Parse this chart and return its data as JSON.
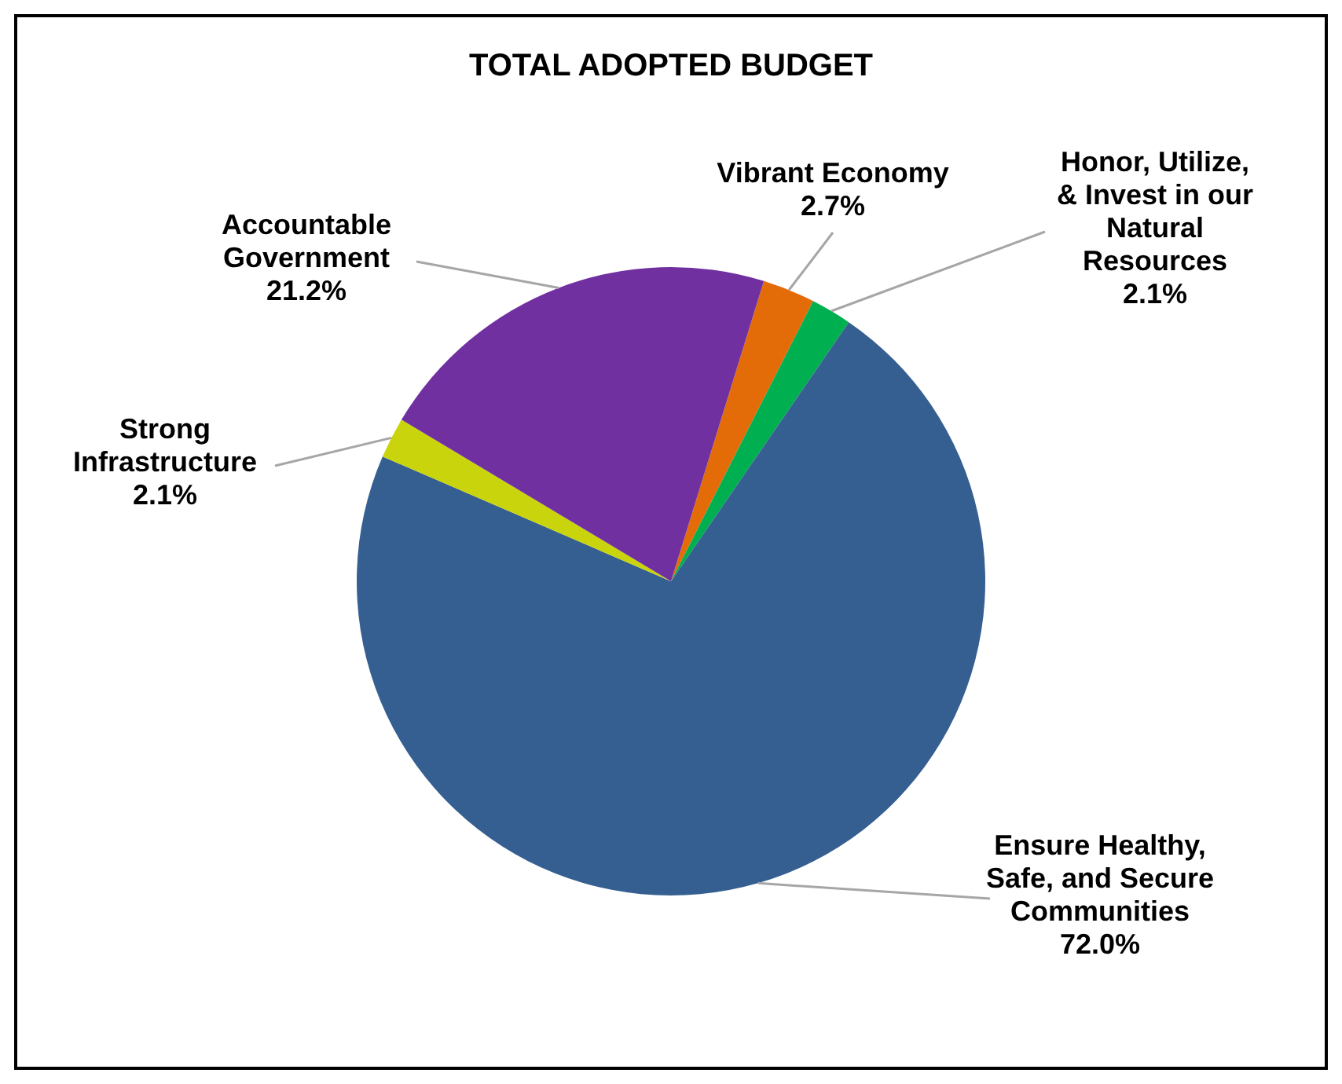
{
  "chart_data": {
    "type": "pie",
    "title": "TOTAL ADOPTED BUDGET",
    "categories": [
      "Vibrant Economy",
      "Honor, Utilize, & Invest in our Natural Resources",
      "Ensure Healthy, Safe, and Secure Communities",
      "Strong Infrastructure",
      "Accountable Government"
    ],
    "values": [
      2.7,
      2.1,
      72.0,
      2.1,
      21.2
    ],
    "value_labels": [
      "2.7%",
      "2.1%",
      "72.0%",
      "2.1%",
      "21.2%"
    ],
    "colors": [
      "#e36c09",
      "#00b050",
      "#365f91",
      "#c9d40c",
      "#7030a0"
    ],
    "legend": false
  }
}
